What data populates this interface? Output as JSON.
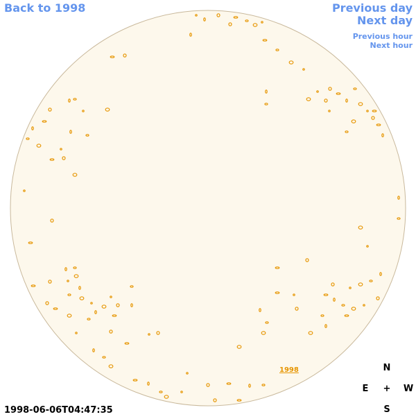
{
  "links": {
    "back": "Back to 1998",
    "previous_day": "Previous day",
    "next_day": "Next day",
    "previous_hour": "Previous hour",
    "next_hour": "Next hour"
  },
  "timestamp": "1998-06-06T04:47:35",
  "compass": {
    "north": "N",
    "east": "E",
    "center": "+",
    "west": "W",
    "south": "S"
  },
  "disk_label": "1998"
}
